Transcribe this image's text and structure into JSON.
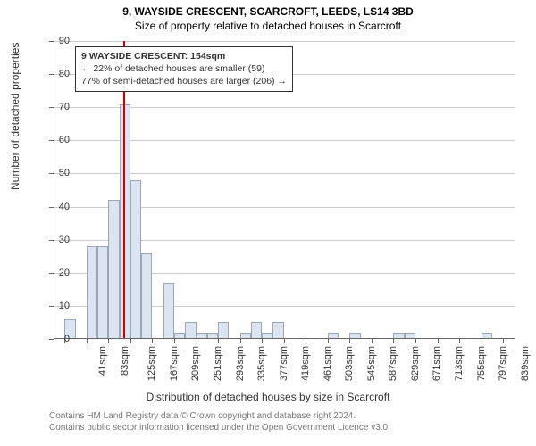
{
  "title_line1": "9, WAYSIDE CRESCENT, SCARCROFT, LEEDS, LS14 3BD",
  "title_line2": "Size of property relative to detached houses in Scarcroft",
  "y_axis_label": "Number of detached properties",
  "x_axis_label": "Distribution of detached houses by size in Scarcroft",
  "annotation": {
    "line1": "9 WAYSIDE CRESCENT: 154sqm",
    "line2": "← 22% of detached houses are smaller (59)",
    "line3": "77% of semi-detached houses are larger (206) →"
  },
  "footer_line1": "Contains HM Land Registry data © Crown copyright and database right 2024.",
  "footer_line2": "Contains public sector information licensed under the Open Government Licence v3.0.",
  "chart": {
    "type": "histogram",
    "ylim": [
      0,
      90
    ],
    "ytick_step": 10,
    "background_color": "#ffffff",
    "grid_color": "#cccccc",
    "axis_color": "#666666",
    "bar_fill": "#dbe4f0",
    "bar_border": "#9aa7b8",
    "marker_value": 154,
    "marker_color": "#cc0000",
    "x_min": 20,
    "x_max": 903,
    "bar_width_units": 21,
    "x_tick_start": 41,
    "x_tick_step": 42,
    "x_tick_suffix": "sqm",
    "values": [
      0,
      6,
      0,
      28,
      28,
      42,
      71,
      48,
      26,
      0,
      17,
      2,
      5,
      2,
      2,
      5,
      0,
      2,
      5,
      2,
      5,
      0,
      0,
      0,
      0,
      2,
      0,
      2,
      0,
      0,
      0,
      2,
      2,
      0,
      0,
      0,
      0,
      0,
      0,
      2,
      0,
      0
    ],
    "title_fontsize": 12,
    "label_fontsize": 12,
    "tick_fontsize": 11,
    "annotation_fontsize": 10.5,
    "footer_fontsize": 10,
    "footer_color": "#787878"
  }
}
